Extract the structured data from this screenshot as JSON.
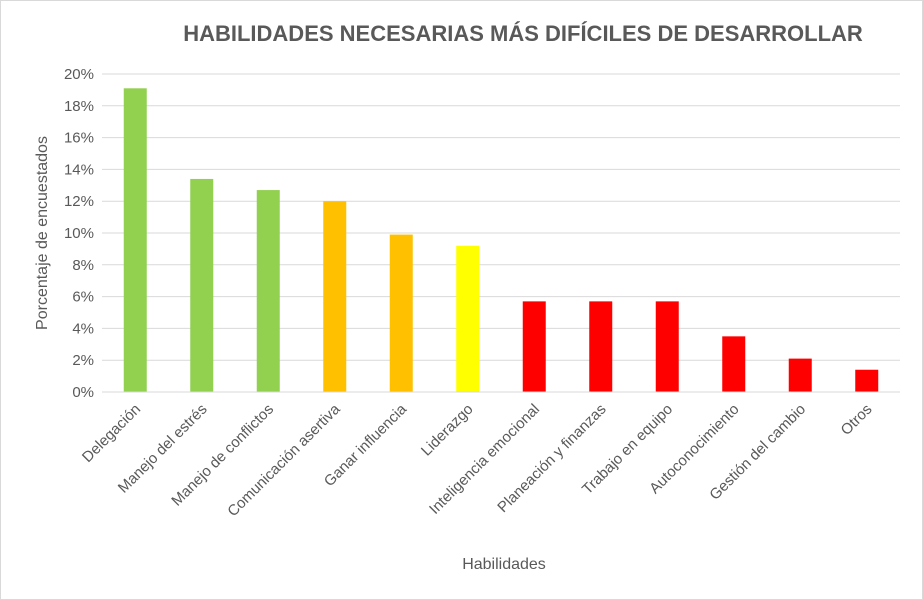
{
  "chart_data": {
    "type": "bar",
    "title": "HABILIDADES NECESARIAS MÁS DIFÍCILES DE DESARROLLAR",
    "xlabel": "Habilidades",
    "ylabel": "Porcentaje de encuestados",
    "ylim": [
      0,
      20
    ],
    "yticks": [
      "0%",
      "2%",
      "4%",
      "6%",
      "8%",
      "10%",
      "12%",
      "14%",
      "16%",
      "18%",
      "20%"
    ],
    "grid": true,
    "legend": "none",
    "categories": [
      "Delegación",
      "Manejo del estrés",
      "Manejo de conflictos",
      "Comunicación asertiva",
      "Ganar influencia",
      "Liderazgo",
      "Inteligencia emocional",
      "Planeación y finanzas",
      "Trabajo en equipo",
      "Autoconocimiento",
      "Gestión del cambio",
      "Otros"
    ],
    "values": [
      19.1,
      13.4,
      12.7,
      12.0,
      9.9,
      9.2,
      5.7,
      5.7,
      5.7,
      3.5,
      2.1,
      1.4
    ],
    "bar_colors": [
      "#92d050",
      "#92d050",
      "#92d050",
      "#ffc000",
      "#ffc000",
      "#ffff00",
      "#ff0000",
      "#ff0000",
      "#ff0000",
      "#ff0000",
      "#ff0000",
      "#ff0000"
    ]
  }
}
